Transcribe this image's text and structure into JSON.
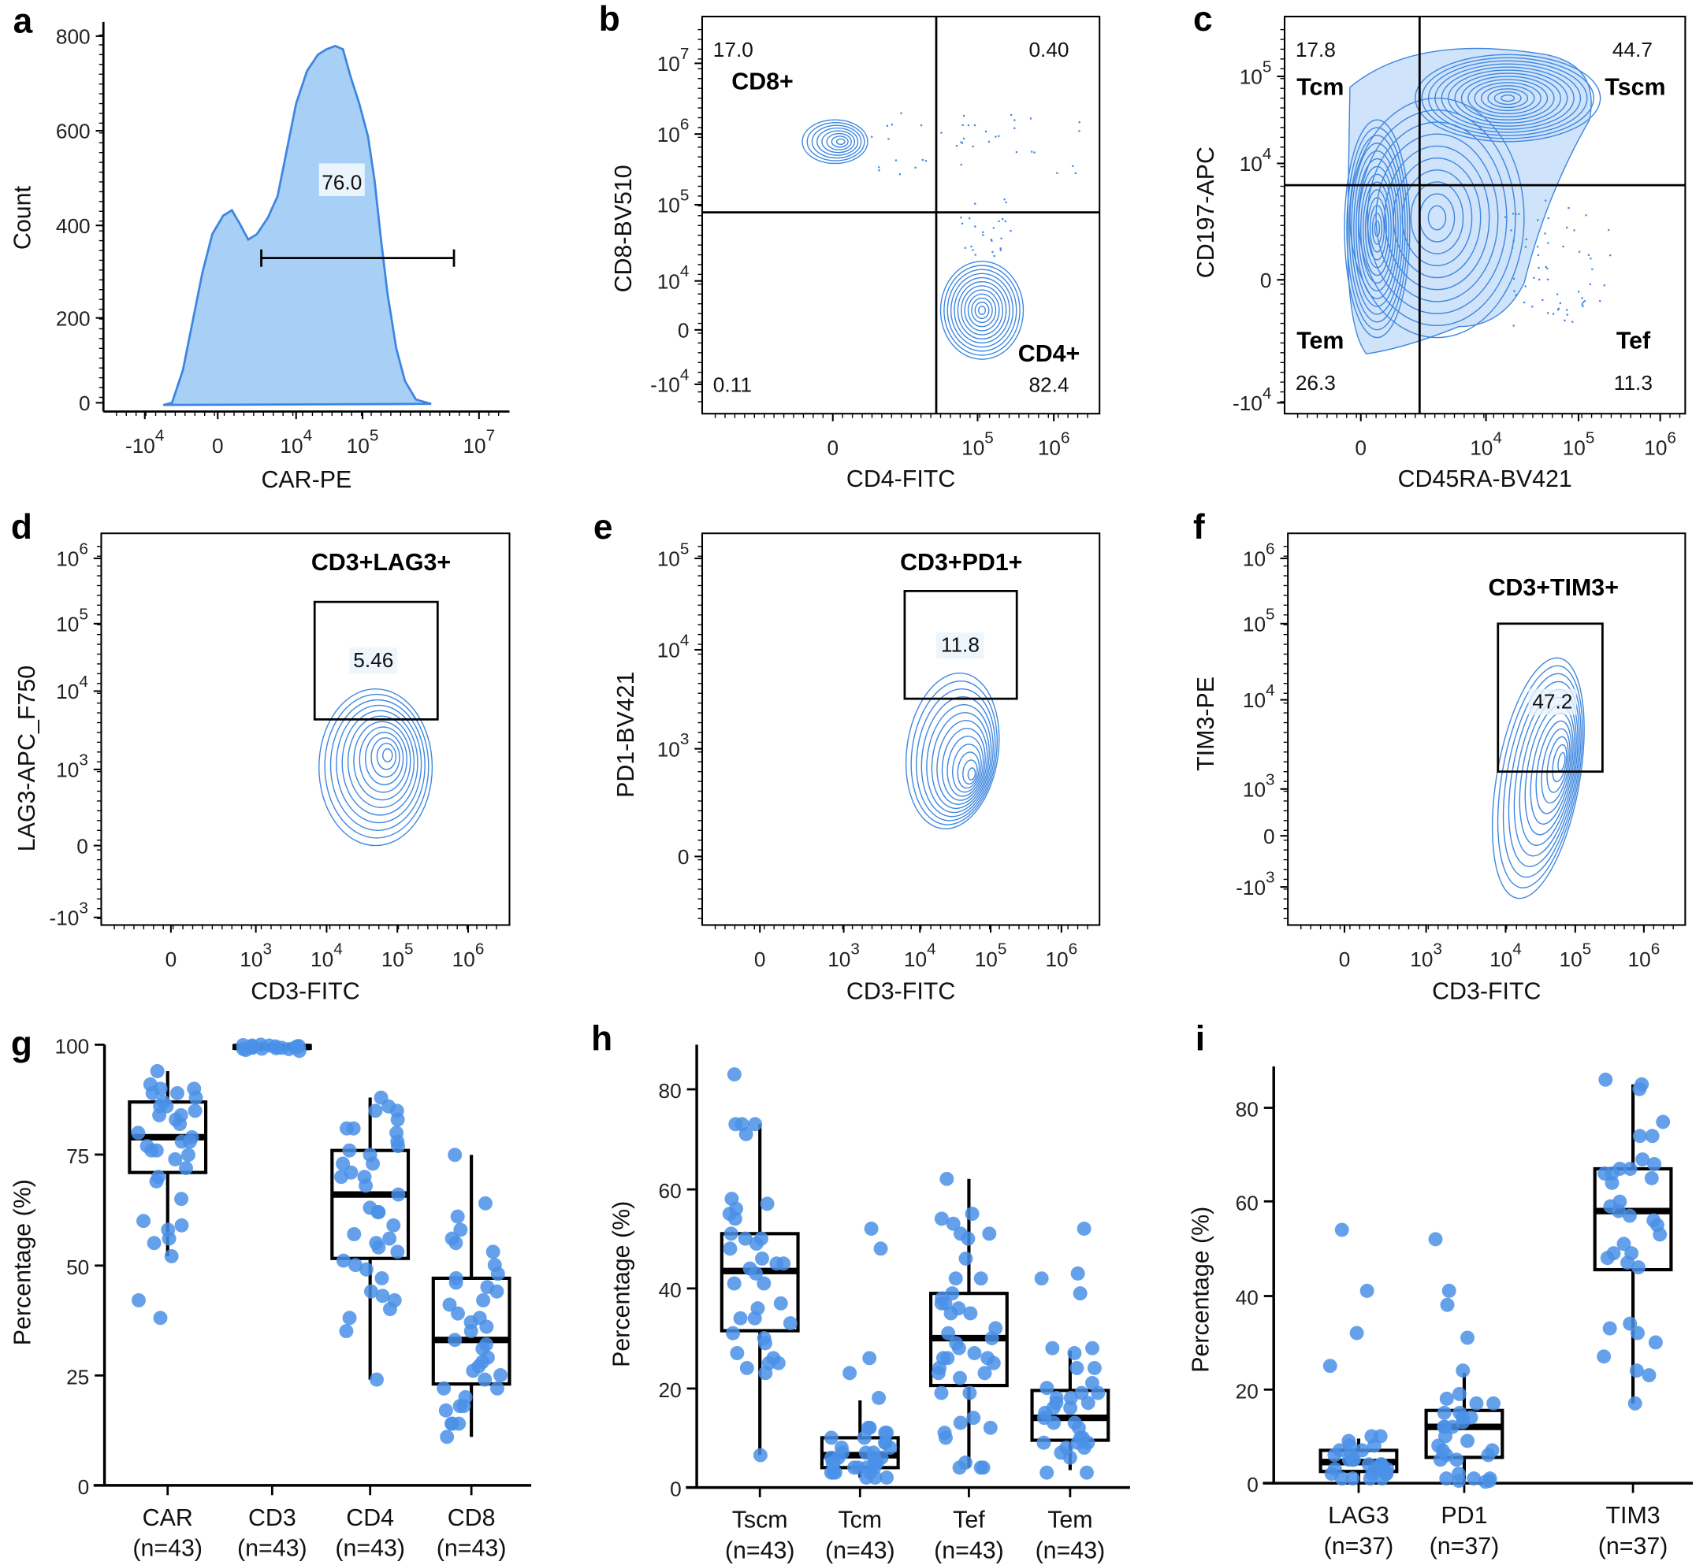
{
  "colors": {
    "point": "#4a90e8",
    "contour": "#3d86e0",
    "hist_fill": "#a8d0f6",
    "axis": "#000000"
  },
  "chart_data": [
    {
      "panel": "a",
      "type": "histogram",
      "xlabel": "CAR-PE",
      "ylabel": "Count",
      "yticks": [
        "0",
        "200",
        "400",
        "600",
        "800"
      ],
      "xticks": [
        "-10^4",
        "0",
        "10^4",
        "10^5",
        "10^7"
      ],
      "ylim": [
        0,
        800
      ],
      "gate_label": "76.0"
    },
    {
      "panel": "b",
      "type": "contour",
      "xlabel": "CD4-FITC",
      "ylabel": "CD8-BV510",
      "yticks": [
        "10^7",
        "10^6",
        "10^5",
        "10^4",
        "0",
        "-10^4"
      ],
      "xticks": [
        "0",
        "10^5",
        "10^6"
      ],
      "quadrants": {
        "top_left": "17.0",
        "top_right": "0.40",
        "bottom_left": "0.11",
        "bottom_right": "82.4"
      },
      "populations": [
        "CD8+",
        "CD4+"
      ]
    },
    {
      "panel": "c",
      "type": "contour",
      "xlabel": "CD45RA-BV421",
      "ylabel": "CD197-APC",
      "yticks": [
        "10^5",
        "10^4",
        "0",
        "-10^4"
      ],
      "xticks": [
        "0",
        "10^4",
        "10^5",
        "10^6"
      ],
      "quadrants": {
        "top_left": "17.8",
        "top_right": "44.7",
        "bottom_left": "26.3",
        "bottom_right": "11.3"
      },
      "populations": [
        "Tcm",
        "Tscm",
        "Tem",
        "Tef"
      ]
    },
    {
      "panel": "d",
      "type": "contour",
      "xlabel": "CD3-FITC",
      "ylabel": "LAG3-APC_F750",
      "yticks": [
        "10^6",
        "10^5",
        "10^4",
        "10^3",
        "0",
        "-10^3"
      ],
      "xticks": [
        "0",
        "10^3",
        "10^4",
        "10^5",
        "10^6"
      ],
      "gate_title": "CD3+LAG3+",
      "gate_value": "5.46"
    },
    {
      "panel": "e",
      "type": "contour",
      "xlabel": "CD3-FITC",
      "ylabel": "PD1-BV421",
      "yticks": [
        "10^5",
        "10^4",
        "10^3",
        "0"
      ],
      "xticks": [
        "0",
        "10^3",
        "10^4",
        "10^5",
        "10^6"
      ],
      "gate_title": "CD3+PD1+",
      "gate_value": "11.8"
    },
    {
      "panel": "f",
      "type": "contour",
      "xlabel": "CD3-FITC",
      "ylabel": "TIM3-PE",
      "yticks": [
        "10^6",
        "10^5",
        "10^4",
        "10^3",
        "0",
        "-10^3"
      ],
      "xticks": [
        "0",
        "10^3",
        "10^4",
        "10^5",
        "10^6"
      ],
      "gate_title": "CD3+TIM3+",
      "gate_value": "47.2"
    },
    {
      "panel": "g",
      "type": "box",
      "ylabel": "Percentage (%)",
      "ylim": [
        0,
        100
      ],
      "yticks": [
        "0",
        "25",
        "50",
        "75",
        "100"
      ],
      "groups": [
        {
          "name": "CAR",
          "n": "(n=43)",
          "whisker_low": 52,
          "q1": 71,
          "median": 79,
          "q3": 87,
          "whisker_high": 94,
          "points": [
            94,
            91,
            90,
            90,
            89,
            89,
            88,
            87,
            86,
            86,
            85,
            84,
            84,
            83,
            82,
            80,
            79,
            78,
            78,
            77,
            76,
            76,
            75,
            74,
            72,
            70,
            69,
            65,
            60,
            59,
            58,
            56,
            55,
            52,
            42,
            38
          ]
        },
        {
          "name": "CD3",
          "n": "(n=43)",
          "whisker_low": 99,
          "q1": 99.2,
          "median": 99.5,
          "q3": 99.8,
          "whisker_high": 100,
          "points": [
            100,
            99.9,
            99.8,
            99.8,
            99.7,
            99.6,
            99.6,
            99.5,
            99.5,
            99.4,
            99.3,
            99.3,
            99.2,
            99.1,
            99,
            99,
            98.8,
            98.6
          ]
        },
        {
          "name": "CD4",
          "n": "(n=43)",
          "whisker_low": 24,
          "q1": 51.5,
          "median": 66,
          "q3": 76,
          "whisker_high": 88,
          "points": [
            88,
            86,
            85,
            85,
            83,
            81,
            81,
            80,
            78,
            77,
            76,
            75,
            73,
            73,
            71,
            70,
            70,
            68,
            66,
            63,
            62,
            62,
            59,
            57,
            56,
            55,
            54,
            53,
            51,
            50,
            49,
            47,
            44,
            43,
            42,
            40,
            38,
            35,
            24
          ]
        },
        {
          "name": "CD8",
          "n": "(n=43)",
          "whisker_low": 11,
          "q1": 23,
          "median": 33,
          "q3": 47,
          "whisker_high": 75,
          "points": [
            75,
            64,
            61,
            58,
            56,
            55,
            53,
            50,
            48,
            47,
            46,
            45,
            44,
            42,
            41,
            39,
            38,
            37,
            36,
            35,
            33,
            32,
            31,
            29,
            28,
            27,
            26,
            25,
            24,
            22,
            22,
            20,
            18,
            18,
            17,
            14,
            14,
            14,
            11
          ]
        }
      ]
    },
    {
      "panel": "h",
      "type": "box",
      "ylabel": "Percentage (%)",
      "ylim": [
        0,
        88
      ],
      "yticks": [
        "0",
        "20",
        "40",
        "60",
        "80"
      ],
      "groups": [
        {
          "name": "Tscm",
          "n": "(n=43)",
          "whisker_low": 6.5,
          "q1": 31.5,
          "median": 43.5,
          "q3": 51,
          "whisker_high": 73,
          "points": [
            83,
            73,
            73,
            73,
            71,
            58,
            57,
            56,
            55,
            54,
            51,
            50,
            50,
            49,
            48,
            46,
            45,
            45,
            44,
            43,
            41,
            41,
            37,
            36,
            34,
            34,
            33,
            31,
            30,
            29,
            27,
            26,
            25,
            25,
            24,
            23,
            6.5
          ]
        },
        {
          "name": "Tcm",
          "n": "(n=43)",
          "whisker_low": 2,
          "q1": 4,
          "median": 6.5,
          "q3": 10,
          "whisker_high": 17.5,
          "points": [
            52,
            48,
            26,
            23,
            18,
            12,
            12,
            11,
            11,
            10,
            10,
            9,
            9,
            8,
            8,
            7,
            7,
            7,
            6,
            6,
            6,
            6,
            5,
            5,
            5,
            5,
            4,
            4,
            4,
            4,
            3,
            3,
            3,
            3,
            2,
            2,
            2
          ]
        },
        {
          "name": "Tef",
          "n": "(n=43)",
          "whisker_low": 4,
          "q1": 20.5,
          "median": 30,
          "q3": 39,
          "whisker_high": 62,
          "points": [
            62,
            55,
            54,
            53,
            51,
            51,
            50,
            46,
            42,
            42,
            39,
            38,
            37,
            37,
            36,
            35,
            35,
            32,
            31,
            30,
            29,
            28,
            27,
            26,
            26,
            26,
            25,
            24,
            23,
            23,
            22,
            19,
            19,
            14,
            13,
            12,
            11,
            10,
            5,
            4,
            4,
            4
          ]
        },
        {
          "name": "Tem",
          "n": "(n=43)",
          "whisker_low": 3.5,
          "q1": 9.5,
          "median": 14,
          "q3": 19.5,
          "whisker_high": 27.5,
          "points": [
            52,
            43,
            42,
            39,
            28,
            28,
            27,
            24,
            24,
            21,
            20,
            19,
            19,
            18,
            18,
            17,
            17,
            16,
            16,
            15,
            14,
            13,
            13,
            12,
            10,
            10,
            9,
            9,
            9,
            8,
            8,
            7,
            6,
            3,
            3
          ]
        }
      ]
    },
    {
      "panel": "i",
      "type": "box",
      "ylabel": "Percentage (%)",
      "ylim": [
        0,
        88
      ],
      "yticks": [
        "0",
        "20",
        "40",
        "60",
        "80"
      ],
      "groups": [
        {
          "name": "LAG3",
          "n": "(n=37)",
          "whisker_low": 0,
          "q1": 2.5,
          "median": 4.5,
          "q3": 7,
          "whisker_high": 9.5,
          "points": [
            54,
            41,
            32,
            25,
            10,
            10,
            9,
            8,
            8,
            7,
            7,
            6,
            6,
            5,
            5,
            5,
            4,
            4,
            4,
            3,
            3,
            3,
            3,
            2,
            2,
            2,
            2,
            1,
            1,
            1,
            1
          ]
        },
        {
          "name": "PD1",
          "n": "(n=37)",
          "whisker_low": 0,
          "q1": 5.5,
          "median": 12,
          "q3": 15.5,
          "whisker_high": 23.5,
          "points": [
            52,
            41,
            38,
            31,
            24,
            19,
            18,
            17,
            17,
            15,
            15,
            14,
            14,
            13,
            12,
            12,
            12,
            10,
            9,
            8,
            7,
            7,
            6,
            6,
            5,
            5,
            2,
            1,
            1,
            1,
            0.5,
            0.5,
            0.3
          ]
        },
        {
          "name": "TIM3",
          "n": "(n=37)",
          "whisker_low": 17,
          "q1": 45.5,
          "median": 58,
          "q3": 67,
          "whisker_high": 85,
          "points": [
            86,
            85,
            84,
            77,
            74,
            74,
            69,
            68,
            67,
            67,
            66,
            66,
            65,
            64,
            60,
            59,
            58,
            57,
            56,
            55,
            53,
            51,
            49,
            49,
            48,
            47,
            46,
            34,
            33,
            32,
            30,
            27,
            24,
            23,
            17
          ]
        }
      ]
    }
  ]
}
